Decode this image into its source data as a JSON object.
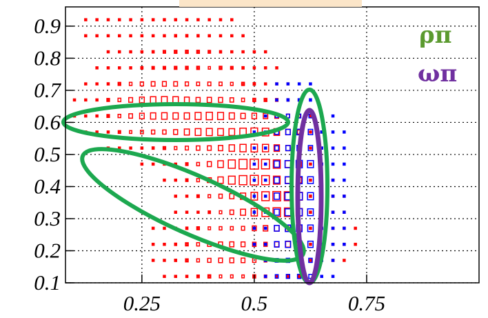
{
  "chart_data": {
    "type": "box",
    "title": "",
    "xlabel": "",
    "ylabel": "",
    "xlim": [
      0.08,
      1.0
    ],
    "ylim": [
      0.1,
      0.96
    ],
    "x_tick_labels": [
      "0.25",
      "0.5",
      "0.75"
    ],
    "x_ticks": [
      0.25,
      0.5,
      0.75
    ],
    "y_tick_labels": [
      "0.1",
      "0.2",
      "0.3",
      "0.4",
      "0.5",
      "0.6",
      "0.7",
      "0.8",
      "0.9"
    ],
    "y_ticks": [
      0.1,
      0.2,
      0.3,
      0.4,
      0.5,
      0.6,
      0.7,
      0.8,
      0.9
    ],
    "grid": true,
    "series": [
      {
        "color": "#ff0000",
        "points": [
          [
            0.25,
            0.9,
            0.1
          ],
          [
            0.3,
            0.9,
            0.12
          ],
          [
            0.35,
            0.8,
            0.2
          ],
          [
            0.4,
            0.7,
            0.3
          ],
          [
            0.3,
            0.65,
            0.55
          ],
          [
            0.4,
            0.6,
            0.6
          ],
          [
            0.5,
            0.55,
            0.65
          ],
          [
            0.5,
            0.45,
            0.8
          ],
          [
            0.55,
            0.35,
            0.75
          ],
          [
            0.6,
            0.25,
            0.5
          ],
          [
            0.45,
            0.2,
            0.4
          ]
        ]
      },
      {
        "color": "#0000ff",
        "points": [
          [
            0.6,
            0.55,
            0.45
          ],
          [
            0.6,
            0.45,
            0.6
          ],
          [
            0.6,
            0.35,
            0.6
          ],
          [
            0.6,
            0.25,
            0.55
          ],
          [
            0.6,
            0.15,
            0.35
          ]
        ]
      }
    ],
    "annotations": [
      {
        "label": "ρπ",
        "color": "#5b9a2f"
      },
      {
        "label": "ωπ",
        "color": "#7030a0"
      }
    ]
  }
}
